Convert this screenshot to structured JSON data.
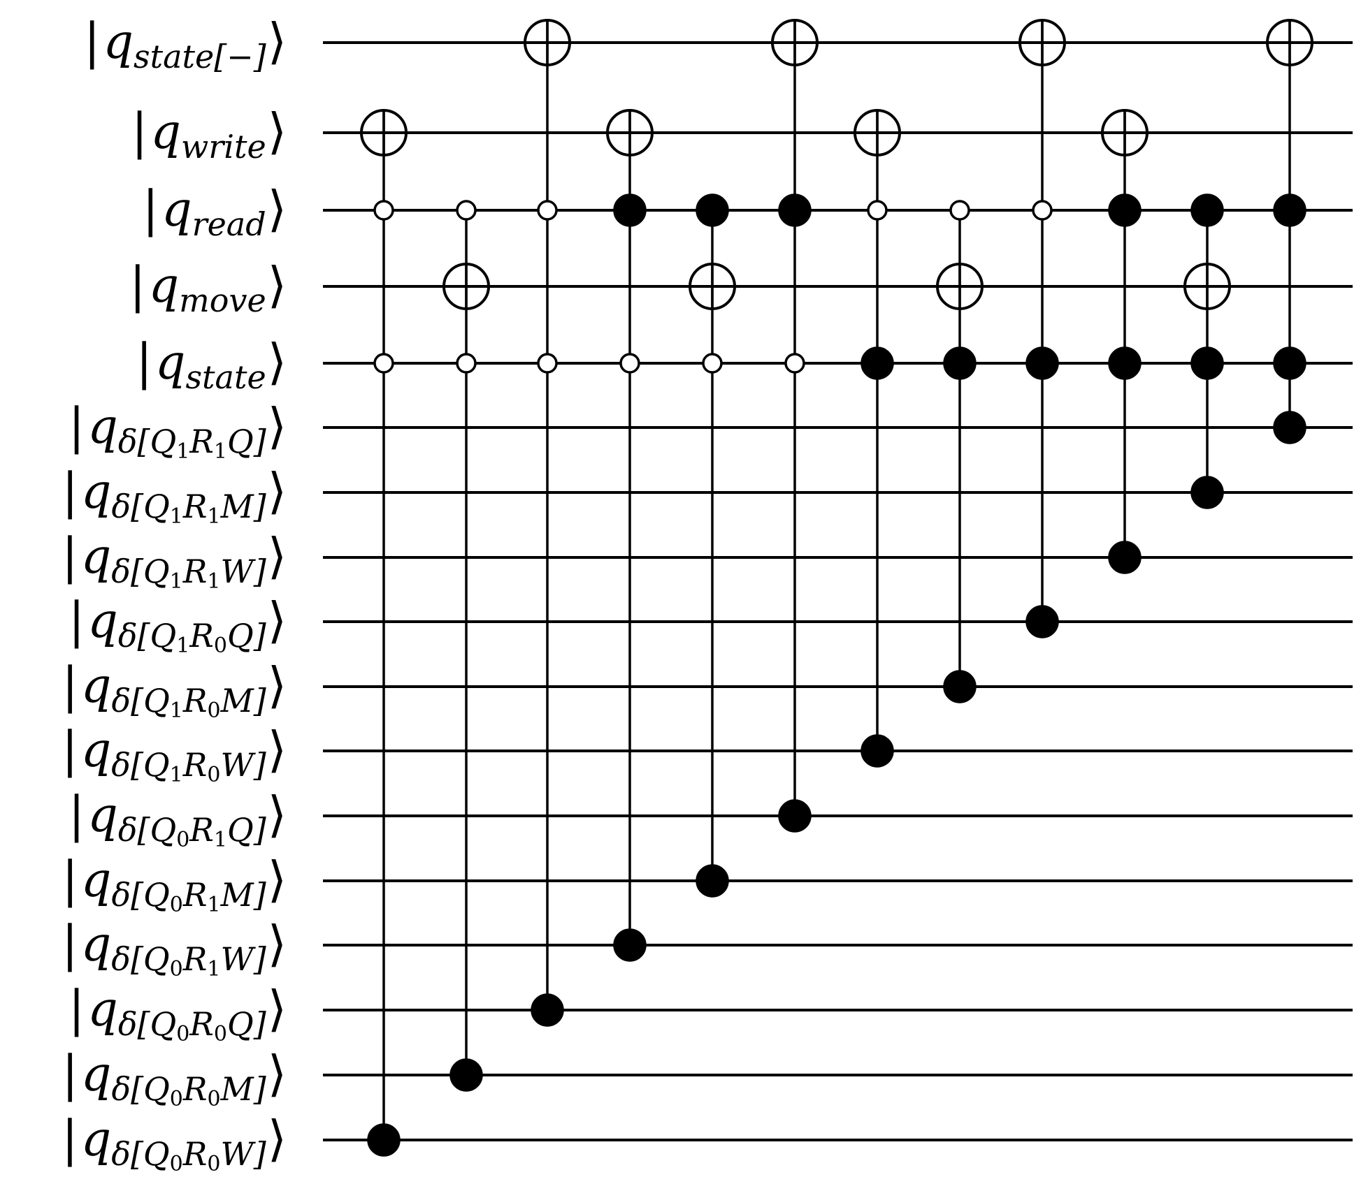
{
  "diagram": {
    "type": "quantum-circuit",
    "qubits": [
      {
        "id": "q_state_minus",
        "sym": "q",
        "sub": "state[−]",
        "subsub": ""
      },
      {
        "id": "q_write",
        "sym": "q",
        "sub": "write",
        "subsub": ""
      },
      {
        "id": "q_read",
        "sym": "q",
        "sub": "read",
        "subsub": ""
      },
      {
        "id": "q_move",
        "sym": "q",
        "sub": "move",
        "subsub": ""
      },
      {
        "id": "q_state",
        "sym": "q",
        "sub": "state",
        "subsub": ""
      },
      {
        "id": "q_d_Q1R1Q",
        "sym": "q",
        "sub": "δ[Q1R1Q]",
        "parts": [
          "δ[",
          "Q",
          "1",
          "R",
          "1",
          "Q",
          "]"
        ]
      },
      {
        "id": "q_d_Q1R1M",
        "sym": "q",
        "sub": "δ[Q1R1M]",
        "parts": [
          "δ[",
          "Q",
          "1",
          "R",
          "1",
          "M",
          "]"
        ]
      },
      {
        "id": "q_d_Q1R1W",
        "sym": "q",
        "sub": "δ[Q1R1W]",
        "parts": [
          "δ[",
          "Q",
          "1",
          "R",
          "1",
          "W",
          "]"
        ]
      },
      {
        "id": "q_d_Q1R0Q",
        "sym": "q",
        "sub": "δ[Q1R0Q]",
        "parts": [
          "δ[",
          "Q",
          "1",
          "R",
          "0",
          "Q",
          "]"
        ]
      },
      {
        "id": "q_d_Q1R0M",
        "sym": "q",
        "sub": "δ[Q1R0M]",
        "parts": [
          "δ[",
          "Q",
          "1",
          "R",
          "0",
          "M",
          "]"
        ]
      },
      {
        "id": "q_d_Q1R0W",
        "sym": "q",
        "sub": "δ[Q1R0W]",
        "parts": [
          "δ[",
          "Q",
          "1",
          "R",
          "0",
          "W",
          "]"
        ]
      },
      {
        "id": "q_d_Q0R1Q",
        "sym": "q",
        "sub": "δ[Q0R1Q]",
        "parts": [
          "δ[",
          "Q",
          "0",
          "R",
          "1",
          "Q",
          "]"
        ]
      },
      {
        "id": "q_d_Q0R1M",
        "sym": "q",
        "sub": "δ[Q0R1M]",
        "parts": [
          "δ[",
          "Q",
          "0",
          "R",
          "1",
          "M",
          "]"
        ]
      },
      {
        "id": "q_d_Q0R1W",
        "sym": "q",
        "sub": "δ[Q0R1W]",
        "parts": [
          "δ[",
          "Q",
          "0",
          "R",
          "1",
          "W",
          "]"
        ]
      },
      {
        "id": "q_d_Q0R0Q",
        "sym": "q",
        "sub": "δ[Q0R0Q]",
        "parts": [
          "δ[",
          "Q",
          "0",
          "R",
          "0",
          "Q",
          "]"
        ]
      },
      {
        "id": "q_d_Q0R0M",
        "sym": "q",
        "sub": "δ[Q0R0M]",
        "parts": [
          "δ[",
          "Q",
          "0",
          "R",
          "0",
          "M",
          "]"
        ]
      },
      {
        "id": "q_d_Q0R0W",
        "sym": "q",
        "sub": "δ[Q0R0W]",
        "parts": [
          "δ[",
          "Q",
          "0",
          "R",
          "0",
          "W",
          "]"
        ]
      }
    ],
    "gates": [
      {
        "target": 1,
        "controls": [
          {
            "q": 2,
            "v": 0
          },
          {
            "q": 4,
            "v": 0
          },
          {
            "q": 16,
            "v": 1
          }
        ]
      },
      {
        "target": 3,
        "controls": [
          {
            "q": 2,
            "v": 0
          },
          {
            "q": 4,
            "v": 0
          },
          {
            "q": 15,
            "v": 1
          }
        ]
      },
      {
        "target": 0,
        "controls": [
          {
            "q": 2,
            "v": 0
          },
          {
            "q": 4,
            "v": 0
          },
          {
            "q": 14,
            "v": 1
          }
        ]
      },
      {
        "target": 1,
        "controls": [
          {
            "q": 2,
            "v": 1
          },
          {
            "q": 4,
            "v": 0
          },
          {
            "q": 13,
            "v": 1
          }
        ]
      },
      {
        "target": 3,
        "controls": [
          {
            "q": 2,
            "v": 1
          },
          {
            "q": 4,
            "v": 0
          },
          {
            "q": 12,
            "v": 1
          }
        ]
      },
      {
        "target": 0,
        "controls": [
          {
            "q": 2,
            "v": 1
          },
          {
            "q": 4,
            "v": 0
          },
          {
            "q": 11,
            "v": 1
          }
        ]
      },
      {
        "target": 1,
        "controls": [
          {
            "q": 2,
            "v": 0
          },
          {
            "q": 4,
            "v": 1
          },
          {
            "q": 10,
            "v": 1
          }
        ]
      },
      {
        "target": 3,
        "controls": [
          {
            "q": 2,
            "v": 0
          },
          {
            "q": 4,
            "v": 1
          },
          {
            "q": 9,
            "v": 1
          }
        ]
      },
      {
        "target": 0,
        "controls": [
          {
            "q": 2,
            "v": 0
          },
          {
            "q": 4,
            "v": 1
          },
          {
            "q": 8,
            "v": 1
          }
        ]
      },
      {
        "target": 1,
        "controls": [
          {
            "q": 2,
            "v": 1
          },
          {
            "q": 4,
            "v": 1
          },
          {
            "q": 7,
            "v": 1
          }
        ]
      },
      {
        "target": 3,
        "controls": [
          {
            "q": 2,
            "v": 1
          },
          {
            "q": 4,
            "v": 1
          },
          {
            "q": 6,
            "v": 1
          }
        ]
      },
      {
        "target": 0,
        "controls": [
          {
            "q": 2,
            "v": 1
          },
          {
            "q": 4,
            "v": 1
          },
          {
            "q": 5,
            "v": 1
          }
        ]
      }
    ]
  }
}
